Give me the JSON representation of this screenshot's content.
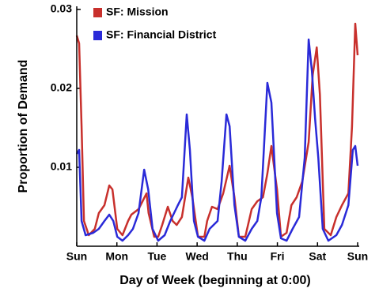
{
  "chart_data": {
    "type": "line",
    "xlabel": "Day of Week (beginning at 0:00)",
    "ylabel": "Proportion of Demand",
    "xlim": [
      0,
      7
    ],
    "ylim": [
      0,
      0.03
    ],
    "xticks": [
      {
        "value": 0,
        "label": "Sun"
      },
      {
        "value": 1,
        "label": "Mon"
      },
      {
        "value": 2,
        "label": "Tue"
      },
      {
        "value": 3,
        "label": "Wed"
      },
      {
        "value": 4,
        "label": "Thu"
      },
      {
        "value": 5,
        "label": "Fri"
      },
      {
        "value": 6,
        "label": "Sat"
      },
      {
        "value": 7,
        "label": "Sun"
      }
    ],
    "yticks": [
      0.01,
      0.02,
      0.03
    ],
    "legend": "upper left",
    "series": [
      {
        "name": "SF: Mission",
        "color": "#c8302c",
        "x": [
          0,
          0.06,
          0.12,
          0.18,
          0.3,
          0.45,
          0.55,
          0.69,
          0.81,
          0.89,
          1.01,
          1.14,
          1.28,
          1.36,
          1.54,
          1.64,
          1.74,
          1.79,
          1.93,
          2.03,
          2.13,
          2.27,
          2.39,
          2.49,
          2.62,
          2.78,
          2.88,
          3.02,
          3.18,
          3.25,
          3.37,
          3.51,
          3.65,
          3.81,
          3.93,
          4.04,
          4.2,
          4.36,
          4.5,
          4.64,
          4.75,
          4.85,
          4.99,
          5.09,
          5.23,
          5.35,
          5.48,
          5.62,
          5.78,
          5.88,
          5.98,
          6.06,
          6.17,
          6.33,
          6.47,
          6.61,
          6.77,
          6.86,
          6.94,
          7.0
        ],
        "values": [
          0.0267,
          0.0257,
          0.0152,
          0.0032,
          0.0014,
          0.0022,
          0.0042,
          0.0052,
          0.0077,
          0.0072,
          0.0022,
          0.0014,
          0.0032,
          0.004,
          0.0047,
          0.0057,
          0.0067,
          0.0042,
          0.0012,
          0.0012,
          0.0027,
          0.005,
          0.0032,
          0.0027,
          0.0037,
          0.0087,
          0.0062,
          0.0012,
          0.0012,
          0.0032,
          0.005,
          0.0047,
          0.0067,
          0.0102,
          0.0062,
          0.0012,
          0.0012,
          0.0047,
          0.0057,
          0.0062,
          0.0092,
          0.0127,
          0.0072,
          0.0012,
          0.0017,
          0.0052,
          0.0062,
          0.0082,
          0.0132,
          0.0217,
          0.0252,
          0.0192,
          0.0022,
          0.0014,
          0.0037,
          0.0052,
          0.0067,
          0.0152,
          0.0282,
          0.0242
        ]
      },
      {
        "name": "SF: Financial District",
        "color": "#2a2ad8",
        "x": [
          0,
          0.06,
          0.12,
          0.22,
          0.41,
          0.55,
          0.69,
          0.81,
          0.91,
          1.01,
          1.14,
          1.28,
          1.4,
          1.54,
          1.68,
          1.78,
          1.89,
          2.03,
          2.19,
          2.33,
          2.52,
          2.62,
          2.74,
          2.82,
          2.92,
          3.02,
          3.18,
          3.31,
          3.51,
          3.61,
          3.73,
          3.81,
          3.93,
          4.04,
          4.2,
          4.36,
          4.5,
          4.6,
          4.75,
          4.85,
          4.99,
          5.09,
          5.23,
          5.38,
          5.54,
          5.68,
          5.78,
          5.86,
          5.94,
          6.02,
          6.13,
          6.27,
          6.47,
          6.61,
          6.77,
          6.88,
          6.94,
          7.0
        ],
        "values": [
          0.0117,
          0.0122,
          0.0032,
          0.0014,
          0.0017,
          0.0022,
          0.0032,
          0.004,
          0.0032,
          0.0012,
          0.0007,
          0.0014,
          0.0022,
          0.0042,
          0.0097,
          0.0072,
          0.0022,
          0.0007,
          0.0014,
          0.0032,
          0.0052,
          0.0062,
          0.0167,
          0.0122,
          0.0032,
          0.0012,
          0.0007,
          0.0022,
          0.0032,
          0.0082,
          0.0167,
          0.0152,
          0.0052,
          0.0012,
          0.0007,
          0.0022,
          0.0032,
          0.0062,
          0.0207,
          0.0182,
          0.0042,
          0.001,
          0.0007,
          0.0022,
          0.0037,
          0.0112,
          0.0262,
          0.0222,
          0.0162,
          0.0112,
          0.0022,
          0.0007,
          0.0014,
          0.0027,
          0.0052,
          0.0122,
          0.0127,
          0.0102
        ]
      }
    ]
  }
}
